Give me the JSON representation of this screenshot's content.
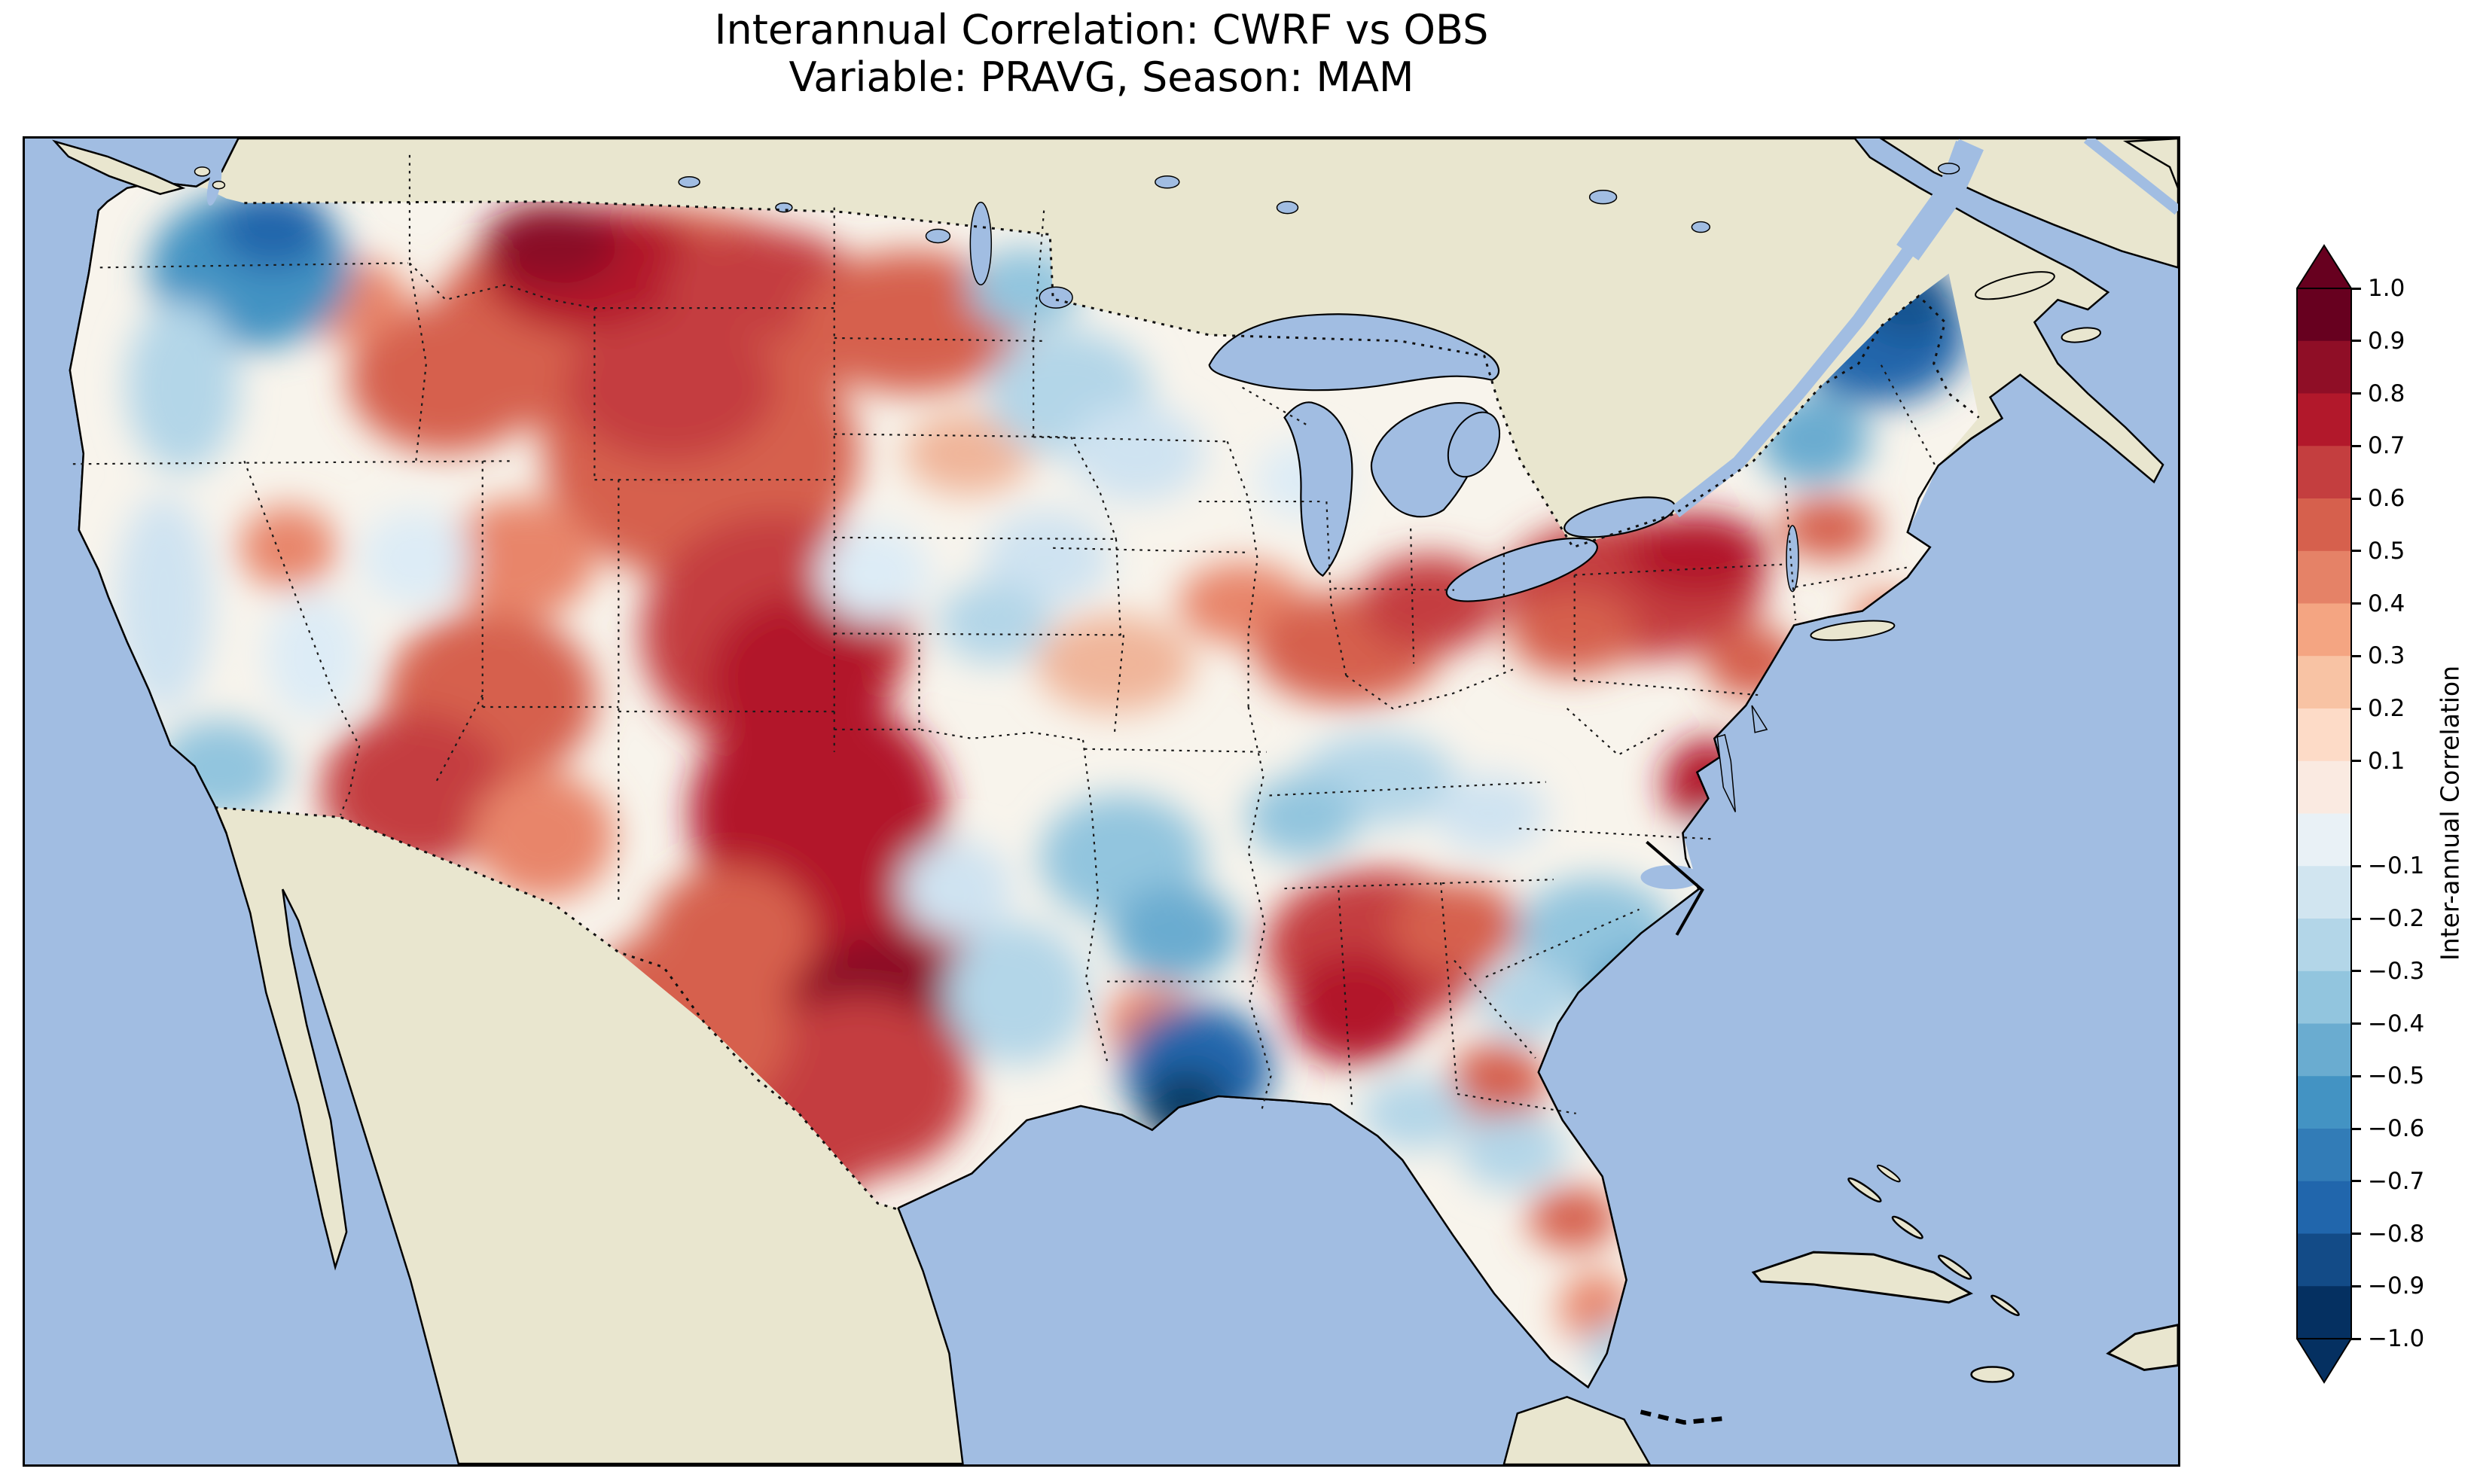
{
  "figure": {
    "title_line1": "Interannual Correlation: CWRF vs OBS",
    "title_line2": "Variable: PRAVG, Season: MAM"
  },
  "map": {
    "ocean_color": "#a1bde2",
    "land_color": "#e9e6cf",
    "field_base_color": "#f8f4ec",
    "coastline_color": "#000000",
    "border_style": "dotted-black"
  },
  "colorbar": {
    "label": "Inter-annual Correlation",
    "over_color": "#67001f",
    "under_color": "#053061",
    "segment_colors": [
      "#67001f",
      "#8f0e26",
      "#b2182b",
      "#c43e3f",
      "#d6604d",
      "#e58267",
      "#f4a582",
      "#f8c3a4",
      "#fddbc7",
      "#faeae1",
      "#e9f1f6",
      "#d1e5f0",
      "#b3d6e8",
      "#92c5de",
      "#6aacd0",
      "#4393c3",
      "#327cb7",
      "#2166ac",
      "#134b87",
      "#053061"
    ],
    "ticks": [
      {
        "value": 1.0,
        "label": "1.0"
      },
      {
        "value": 0.9,
        "label": "0.9"
      },
      {
        "value": 0.8,
        "label": "0.8"
      },
      {
        "value": 0.7,
        "label": "0.7"
      },
      {
        "value": 0.6,
        "label": "0.6"
      },
      {
        "value": 0.5,
        "label": "0.5"
      },
      {
        "value": 0.4,
        "label": "0.4"
      },
      {
        "value": 0.3,
        "label": "0.3"
      },
      {
        "value": 0.2,
        "label": "0.2"
      },
      {
        "value": 0.1,
        "label": "0.1"
      },
      {
        "value": -0.1,
        "label": "−0.1"
      },
      {
        "value": -0.2,
        "label": "−0.2"
      },
      {
        "value": -0.3,
        "label": "−0.3"
      },
      {
        "value": -0.4,
        "label": "−0.4"
      },
      {
        "value": -0.5,
        "label": "−0.5"
      },
      {
        "value": -0.6,
        "label": "−0.6"
      },
      {
        "value": -0.7,
        "label": "−0.7"
      },
      {
        "value": -0.8,
        "label": "−0.8"
      },
      {
        "value": -0.9,
        "label": "−0.9"
      },
      {
        "value": -1.0,
        "label": "−1.0"
      }
    ]
  },
  "chart_data": {
    "type": "heatmap",
    "title": "Interannual Correlation: CWRF vs OBS",
    "subtitle": "Variable: PRAVG, Season: MAM",
    "comparison": "CWRF vs OBS",
    "variable": "PRAVG",
    "season": "MAM",
    "region": "Contiguous United States (filled-contour map, RdBu_r palette)",
    "colorbar_label": "Inter-annual Correlation",
    "value_range": [
      -1.0,
      1.0
    ],
    "contour_interval": 0.1,
    "regions_approx": [
      {
        "region": "Western Washington / Pacific Northwest coast",
        "corr": -0.5
      },
      {
        "region": "Montana and northern Rockies",
        "corr": 0.8
      },
      {
        "region": "Wyoming / Colorado Front Range",
        "corr": 0.7
      },
      {
        "region": "New Mexico – Texas Panhandle – Oklahoma",
        "corr": 0.9
      },
      {
        "region": "Central and South Texas",
        "corr": 0.6
      },
      {
        "region": "Utah / Arizona",
        "corr": 0.5
      },
      {
        "region": "California coast",
        "corr": -0.2
      },
      {
        "region": "Upper Midwest (MN/WI/IA)",
        "corr": -0.1
      },
      {
        "region": "Missouri / Arkansas",
        "corr": -0.3
      },
      {
        "region": "Lower Mississippi Valley (LA/MS)",
        "corr": -0.7
      },
      {
        "region": "Tennessee / Alabama",
        "corr": 0.6
      },
      {
        "region": "Ohio Valley / Indiana",
        "corr": 0.4
      },
      {
        "region": "Pennsylvania / southern New York",
        "corr": 0.7
      },
      {
        "region": "Northern New England",
        "corr": -0.7
      },
      {
        "region": "Coastal Carolinas",
        "corr": -0.4
      },
      {
        "region": "Virginia coast",
        "corr": 0.7
      },
      {
        "region": "Florida peninsula",
        "corr": 0.2
      }
    ],
    "patch_coordinate_space": "map-svg 2865x1768",
    "field_patches": [
      [
        830,
        250,
        290,
        160,
        "#d6604d"
      ],
      [
        760,
        175,
        150,
        85,
        "#b2182b"
      ],
      [
        700,
        140,
        90,
        55,
        "#8a0b25"
      ],
      [
        980,
        195,
        130,
        75,
        "#c43e3f"
      ],
      [
        900,
        420,
        210,
        170,
        "#d6604d"
      ],
      [
        860,
        330,
        140,
        100,
        "#c43e3f"
      ],
      [
        1000,
        660,
        180,
        160,
        "#c43e3f"
      ],
      [
        1030,
        720,
        120,
        110,
        "#b2182b"
      ],
      [
        1055,
        900,
        170,
        160,
        "#b2182b"
      ],
      [
        1120,
        1120,
        180,
        160,
        "#b2182b"
      ],
      [
        1135,
        1165,
        110,
        100,
        "#8a0b25"
      ],
      [
        1110,
        1265,
        150,
        120,
        "#c43e3f"
      ],
      [
        990,
        1330,
        160,
        100,
        "#c43e3f"
      ],
      [
        880,
        1180,
        140,
        130,
        "#d6604d"
      ],
      [
        940,
        1060,
        110,
        90,
        "#d6604d"
      ],
      [
        620,
        745,
        140,
        115,
        "#d6604d"
      ],
      [
        520,
        870,
        125,
        105,
        "#c43e3f"
      ],
      [
        690,
        930,
        95,
        85,
        "#e8856b"
      ],
      [
        560,
        320,
        130,
        100,
        "#d6604d"
      ],
      [
        430,
        215,
        80,
        55,
        "#e8856b"
      ],
      [
        660,
        560,
        100,
        80,
        "#e8856b"
      ],
      [
        350,
        545,
        65,
        55,
        "#e8856b"
      ],
      [
        1180,
        245,
        150,
        95,
        "#d6604d"
      ],
      [
        1255,
        420,
        85,
        55,
        "#f0b59a"
      ],
      [
        1450,
        700,
        105,
        65,
        "#f0b59a"
      ],
      [
        1620,
        620,
        85,
        55,
        "#e8856b"
      ],
      [
        1760,
        680,
        125,
        75,
        "#d6604d"
      ],
      [
        1870,
        620,
        95,
        65,
        "#c43e3f"
      ],
      [
        2140,
        600,
        175,
        95,
        "#c43e3f"
      ],
      [
        2225,
        555,
        95,
        55,
        "#b2182b"
      ],
      [
        2060,
        660,
        85,
        55,
        "#d6604d"
      ],
      [
        1800,
        1080,
        150,
        105,
        "#c43e3f"
      ],
      [
        1770,
        1160,
        90,
        75,
        "#b2182b"
      ],
      [
        1905,
        1050,
        85,
        60,
        "#d6604d"
      ],
      [
        2240,
        860,
        60,
        60,
        "#b2182b"
      ],
      [
        2300,
        700,
        65,
        48,
        "#d6604d"
      ],
      [
        1960,
        1260,
        65,
        55,
        "#d6604d"
      ],
      [
        2060,
        1440,
        60,
        42,
        "#d6604d"
      ],
      [
        2090,
        1560,
        48,
        48,
        "#e8856b"
      ],
      [
        1500,
        1180,
        62,
        52,
        "#e8856b"
      ],
      [
        2400,
        520,
        65,
        42,
        "#d6604d"
      ],
      [
        2480,
        640,
        50,
        35,
        "#e8856b"
      ],
      [
        300,
        175,
        135,
        105,
        "#4393c3"
      ],
      [
        330,
        120,
        75,
        55,
        "#2166ac"
      ],
      [
        210,
        330,
        75,
        115,
        "#b3d6e8"
      ],
      [
        185,
        620,
        65,
        145,
        "#cfe3f1"
      ],
      [
        260,
        840,
        85,
        65,
        "#92c5de"
      ],
      [
        385,
        690,
        65,
        85,
        "#ddecf6"
      ],
      [
        520,
        560,
        75,
        65,
        "#ddecf6"
      ],
      [
        1390,
        340,
        110,
        85,
        "#b3d6e8"
      ],
      [
        1330,
        200,
        75,
        55,
        "#92c5de"
      ],
      [
        1480,
        420,
        90,
        65,
        "#cfe3f1"
      ],
      [
        1360,
        560,
        85,
        65,
        "#cfe3f1"
      ],
      [
        1290,
        645,
        75,
        55,
        "#b3d6e8"
      ],
      [
        1130,
        580,
        75,
        65,
        "#ddecf6"
      ],
      [
        1460,
        960,
        110,
        85,
        "#92c5de"
      ],
      [
        1530,
        1060,
        85,
        65,
        "#6aacd0"
      ],
      [
        1560,
        1240,
        100,
        85,
        "#2166ac"
      ],
      [
        1545,
        1292,
        60,
        52,
        "#0b3d66"
      ],
      [
        1320,
        1140,
        95,
        95,
        "#b3d6e8"
      ],
      [
        1240,
        1000,
        75,
        65,
        "#cfe3f1"
      ],
      [
        1800,
        855,
        105,
        62,
        "#b3d6e8"
      ],
      [
        1700,
        905,
        75,
        55,
        "#92c5de"
      ],
      [
        1950,
        900,
        75,
        52,
        "#cfe3f1"
      ],
      [
        2090,
        1060,
        105,
        75,
        "#92c5de"
      ],
      [
        2160,
        1140,
        85,
        62,
        "#6aacd0"
      ],
      [
        2000,
        1150,
        65,
        52,
        "#b3d6e8"
      ],
      [
        1980,
        1350,
        72,
        52,
        "#b3d6e8"
      ],
      [
        2130,
        1620,
        55,
        42,
        "#b3d6e8"
      ],
      [
        2470,
        262,
        115,
        92,
        "#2166ac"
      ],
      [
        2505,
        215,
        62,
        52,
        "#14528f"
      ],
      [
        2380,
        400,
        75,
        62,
        "#6aacd0"
      ],
      [
        1700,
        455,
        62,
        52,
        "#ddecf6"
      ],
      [
        1850,
        1300,
        72,
        48,
        "#b3d6e8"
      ],
      [
        2280,
        950,
        62,
        52,
        "#cfe3f1"
      ]
    ]
  }
}
